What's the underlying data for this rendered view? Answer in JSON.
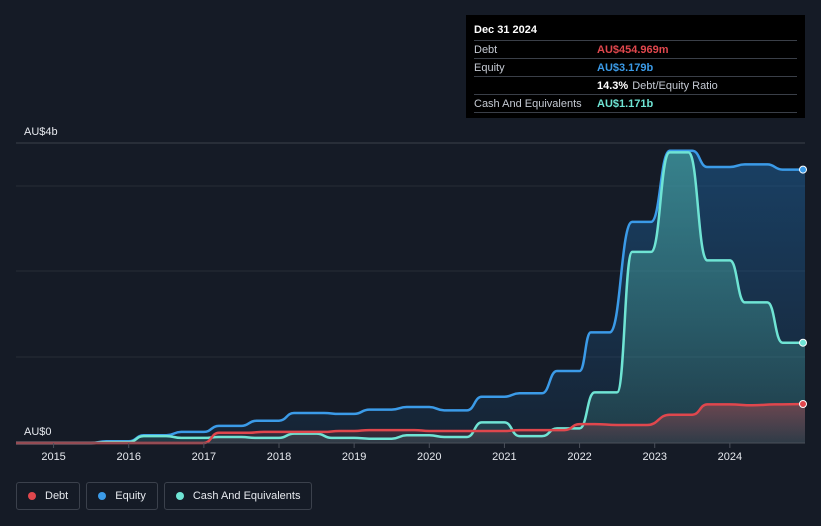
{
  "tooltip": {
    "date": "Dec 31 2024",
    "rows": [
      {
        "label": "Debt",
        "value": "AU$454.969m",
        "color": "#e0474d"
      },
      {
        "label": "Equity",
        "value": "AU$3.179b",
        "color": "#3b9be8"
      },
      {
        "label": "",
        "value": "14.3%",
        "suffix": "Debt/Equity Ratio",
        "color": "#ffffff"
      },
      {
        "label": "Cash And Equivalents",
        "value": "AU$1.171b",
        "color": "#6fe4d4"
      }
    ]
  },
  "legend": [
    {
      "label": "Debt",
      "color": "#e0474d"
    },
    {
      "label": "Equity",
      "color": "#3b9be8"
    },
    {
      "label": "Cash And Equivalents",
      "color": "#6fe4d4"
    }
  ],
  "chart_data": {
    "type": "area",
    "ylabel_top": "AU$4b",
    "ylabel_bottom": "AU$0",
    "ylim": [
      0,
      3.5
    ],
    "xlim": [
      2014.5,
      2025.0
    ],
    "x_ticks": [
      "2015",
      "2016",
      "2017",
      "2018",
      "2019",
      "2020",
      "2021",
      "2022",
      "2023",
      "2024"
    ],
    "grid": true,
    "series": [
      {
        "name": "Equity",
        "color": "#3b9be8",
        "points": [
          [
            2014.5,
            0.0
          ],
          [
            2015.5,
            0.0
          ],
          [
            2015.7,
            0.02
          ],
          [
            2016.0,
            0.02
          ],
          [
            2016.2,
            0.09
          ],
          [
            2016.5,
            0.09
          ],
          [
            2016.7,
            0.13
          ],
          [
            2017.0,
            0.13
          ],
          [
            2017.2,
            0.2
          ],
          [
            2017.5,
            0.2
          ],
          [
            2017.7,
            0.26
          ],
          [
            2018.0,
            0.26
          ],
          [
            2018.2,
            0.35
          ],
          [
            2018.6,
            0.35
          ],
          [
            2018.8,
            0.34
          ],
          [
            2019.0,
            0.34
          ],
          [
            2019.2,
            0.39
          ],
          [
            2019.5,
            0.39
          ],
          [
            2019.7,
            0.42
          ],
          [
            2020.0,
            0.42
          ],
          [
            2020.2,
            0.38
          ],
          [
            2020.5,
            0.38
          ],
          [
            2020.7,
            0.54
          ],
          [
            2021.0,
            0.54
          ],
          [
            2021.2,
            0.58
          ],
          [
            2021.5,
            0.58
          ],
          [
            2021.7,
            0.84
          ],
          [
            2022.0,
            0.84
          ],
          [
            2022.15,
            1.29
          ],
          [
            2022.4,
            1.29
          ],
          [
            2022.7,
            2.58
          ],
          [
            2022.95,
            2.58
          ],
          [
            2023.2,
            3.41
          ],
          [
            2023.5,
            3.41
          ],
          [
            2023.7,
            3.22
          ],
          [
            2024.0,
            3.22
          ],
          [
            2024.2,
            3.25
          ],
          [
            2024.5,
            3.25
          ],
          [
            2024.7,
            3.19
          ],
          [
            2025.0,
            3.19
          ]
        ]
      },
      {
        "name": "Cash And Equivalents",
        "color": "#6fe4d4",
        "points": [
          [
            2014.5,
            0.0
          ],
          [
            2015.5,
            0.0
          ],
          [
            2015.7,
            0.01
          ],
          [
            2016.0,
            0.01
          ],
          [
            2016.2,
            0.08
          ],
          [
            2016.5,
            0.08
          ],
          [
            2016.7,
            0.06
          ],
          [
            2017.0,
            0.06
          ],
          [
            2017.2,
            0.07
          ],
          [
            2017.5,
            0.07
          ],
          [
            2017.7,
            0.06
          ],
          [
            2018.0,
            0.06
          ],
          [
            2018.2,
            0.11
          ],
          [
            2018.5,
            0.11
          ],
          [
            2018.7,
            0.06
          ],
          [
            2019.0,
            0.06
          ],
          [
            2019.2,
            0.05
          ],
          [
            2019.5,
            0.05
          ],
          [
            2019.7,
            0.09
          ],
          [
            2020.0,
            0.09
          ],
          [
            2020.2,
            0.07
          ],
          [
            2020.5,
            0.07
          ],
          [
            2020.7,
            0.24
          ],
          [
            2021.0,
            0.24
          ],
          [
            2021.2,
            0.08
          ],
          [
            2021.5,
            0.08
          ],
          [
            2021.7,
            0.17
          ],
          [
            2022.0,
            0.17
          ],
          [
            2022.2,
            0.59
          ],
          [
            2022.5,
            0.59
          ],
          [
            2022.7,
            2.23
          ],
          [
            2022.95,
            2.23
          ],
          [
            2023.2,
            3.39
          ],
          [
            2023.45,
            3.39
          ],
          [
            2023.7,
            2.13
          ],
          [
            2024.0,
            2.13
          ],
          [
            2024.2,
            1.64
          ],
          [
            2024.5,
            1.64
          ],
          [
            2024.7,
            1.17
          ],
          [
            2025.0,
            1.17
          ]
        ]
      },
      {
        "name": "Debt",
        "color": "#e0474d",
        "points": [
          [
            2014.5,
            0.0
          ],
          [
            2017.0,
            0.0
          ],
          [
            2017.2,
            0.12
          ],
          [
            2017.6,
            0.12
          ],
          [
            2017.8,
            0.13
          ],
          [
            2018.6,
            0.13
          ],
          [
            2018.8,
            0.14
          ],
          [
            2019.0,
            0.14
          ],
          [
            2019.2,
            0.15
          ],
          [
            2019.8,
            0.15
          ],
          [
            2020.0,
            0.14
          ],
          [
            2021.0,
            0.14
          ],
          [
            2021.2,
            0.15
          ],
          [
            2021.8,
            0.15
          ],
          [
            2022.0,
            0.22
          ],
          [
            2022.2,
            0.22
          ],
          [
            2022.5,
            0.21
          ],
          [
            2022.9,
            0.21
          ],
          [
            2023.2,
            0.33
          ],
          [
            2023.5,
            0.33
          ],
          [
            2023.7,
            0.45
          ],
          [
            2024.0,
            0.45
          ],
          [
            2024.3,
            0.44
          ],
          [
            2024.6,
            0.45
          ],
          [
            2025.0,
            0.455
          ]
        ]
      }
    ]
  }
}
